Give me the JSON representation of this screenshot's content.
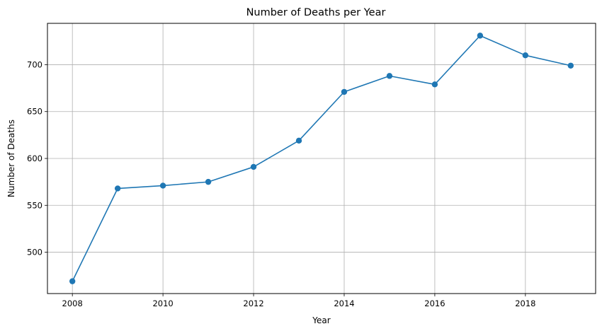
{
  "chart_data": {
    "type": "line",
    "title": "Number of Deaths per Year",
    "xlabel": "Year",
    "ylabel": "Number of Deaths",
    "x": [
      2008,
      2009,
      2010,
      2011,
      2012,
      2013,
      2014,
      2015,
      2016,
      2017,
      2018,
      2019
    ],
    "series": [
      {
        "values": [
          469,
          568,
          571,
          575,
          591,
          619,
          671,
          688,
          679,
          731,
          710,
          699
        ],
        "color": "#1f77b4",
        "marker": "circle"
      }
    ],
    "xticks": [
      "2008",
      "2010",
      "2012",
      "2014",
      "2016",
      "2018"
    ],
    "yticks": [
      "500",
      "550",
      "600",
      "650",
      "700"
    ],
    "xlim": [
      2007.45,
      2019.55
    ],
    "ylim": [
      455.9,
      744.1
    ],
    "grid": true,
    "legend": "none"
  }
}
